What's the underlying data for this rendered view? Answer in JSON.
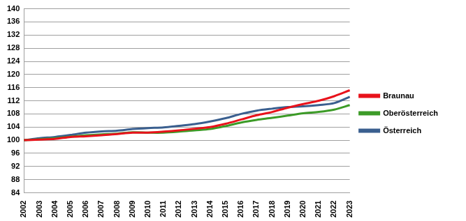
{
  "chart_data": {
    "type": "line",
    "categories": [
      "2002",
      "2003",
      "2004",
      "2005",
      "2006",
      "2007",
      "2008",
      "2009",
      "2010",
      "2011",
      "2012",
      "2013",
      "2014",
      "2015",
      "2016",
      "2017",
      "2018",
      "2019",
      "2020",
      "2021",
      "2022",
      "2023"
    ],
    "series": [
      {
        "name": "Braunau",
        "color": "#e8121b",
        "values": [
          100,
          100.2,
          100.4,
          101,
          101.2,
          101.5,
          101.9,
          102.3,
          102.3,
          102.6,
          103,
          103.5,
          104,
          105,
          106.3,
          107.6,
          108.6,
          109.9,
          111,
          112,
          113.4,
          115.2
        ]
      },
      {
        "name": "Oberösterreich",
        "color": "#3c9b27",
        "values": [
          100,
          100.3,
          100.6,
          101.1,
          101.5,
          101.8,
          102,
          102.4,
          102.3,
          102.3,
          102.6,
          103,
          103.4,
          104.3,
          105.4,
          106.2,
          106.8,
          107.5,
          108.2,
          108.6,
          109.3,
          110.7
        ]
      },
      {
        "name": "Österreich",
        "color": "#3a5f8f",
        "values": [
          100,
          100.6,
          101,
          101.6,
          102.3,
          102.7,
          102.9,
          103.4,
          103.7,
          103.9,
          104.4,
          104.9,
          105.7,
          106.7,
          108,
          109,
          109.6,
          110.1,
          110.3,
          110.7,
          111.3,
          113.2
        ]
      }
    ],
    "ylim": [
      84,
      140
    ],
    "yticks": [
      84,
      88,
      92,
      96,
      100,
      104,
      108,
      112,
      116,
      120,
      124,
      128,
      132,
      136,
      140
    ],
    "grid": true,
    "legend": "right"
  }
}
